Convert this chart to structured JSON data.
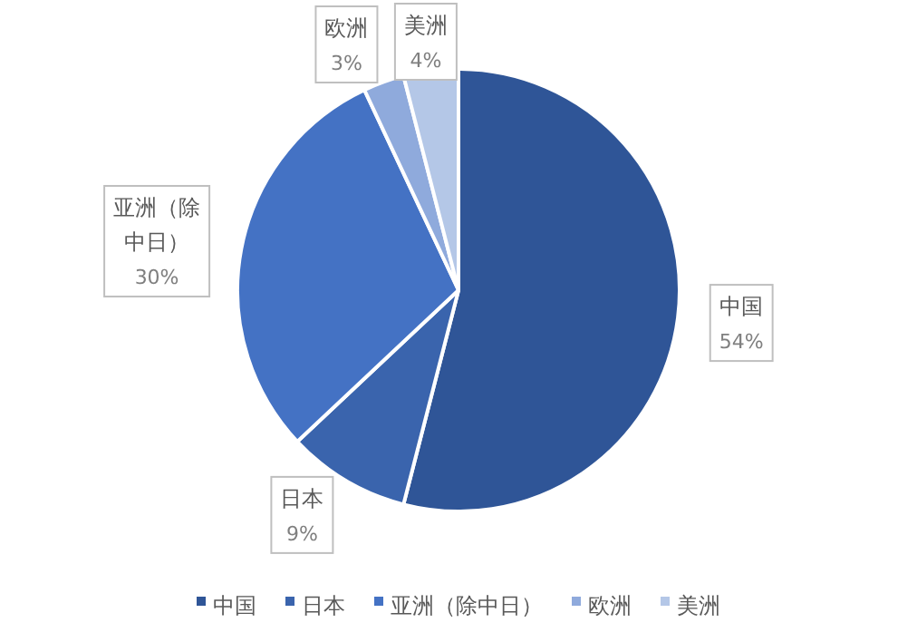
{
  "chart_data": {
    "type": "pie",
    "categories": [
      "中国",
      "日本",
      "亚洲（除中日）",
      "欧洲",
      "美洲"
    ],
    "values": [
      54,
      9,
      30,
      3,
      4
    ],
    "value_labels": [
      "54%",
      "9%",
      "30%",
      "3%",
      "4%"
    ],
    "colors": [
      "#2f5597",
      "#3a64ad",
      "#4472c4",
      "#8faadc",
      "#b4c7e7"
    ],
    "legend": "bottom"
  }
}
